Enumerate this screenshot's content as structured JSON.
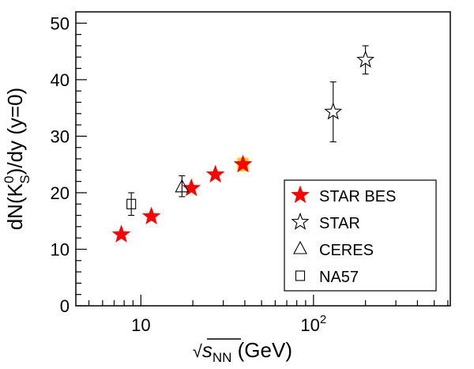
{
  "chart_data": {
    "type": "scatter",
    "x_scale": "log",
    "xlim": [
      4.2,
      620
    ],
    "ylim": [
      0,
      52
    ],
    "x_major_ticks": [
      10,
      100
    ],
    "x_tick_labels": [
      {
        "value": 10,
        "base": "10",
        "exp": ""
      },
      {
        "value": 100,
        "base": "10",
        "exp": "2"
      }
    ],
    "y_ticks": [
      0,
      10,
      20,
      30,
      40,
      50
    ],
    "y_tick_labels": [
      "0",
      "10",
      "20",
      "30",
      "40",
      "50"
    ],
    "xlabel": {
      "sqrt": "√",
      "s": "s",
      "sub": "NN",
      "unit": " (GeV)"
    },
    "ylabel": {
      "p1": "dN(K",
      "sup": "0",
      "sub": "S",
      "p2": ")/dy (y=0)"
    },
    "grid": false,
    "legend_position": "bottom-right",
    "series": [
      {
        "name": "STAR BES",
        "marker": "star-filled",
        "color": "#ff0000",
        "points": [
          {
            "x": 7.7,
            "y": 12.6
          },
          {
            "x": 11.5,
            "y": 15.8
          },
          {
            "x": 19.6,
            "y": 20.8
          },
          {
            "x": 27,
            "y": 23.2
          },
          {
            "x": 39,
            "y": 25.0,
            "sys_box": [
              23.8,
              26.2
            ]
          }
        ]
      },
      {
        "name": "STAR",
        "marker": "star-open",
        "color": "#000000",
        "points": [
          {
            "x": 130,
            "y": 34.3,
            "err": [
              29.0,
              39.6
            ]
          },
          {
            "x": 200,
            "y": 43.5,
            "err": [
              41.0,
              46.0
            ]
          }
        ]
      },
      {
        "name": "CERES",
        "marker": "triangle-open",
        "color": "#000000",
        "points": [
          {
            "x": 17.3,
            "y": 21.0,
            "err": [
              19.3,
              23.0
            ]
          }
        ]
      },
      {
        "name": "NA57",
        "marker": "square-open",
        "color": "#000000",
        "points": [
          {
            "x": 8.8,
            "y": 18.0,
            "err": [
              16.0,
              20.0
            ]
          }
        ]
      }
    ],
    "sys_box_color": "#ffcc00"
  }
}
